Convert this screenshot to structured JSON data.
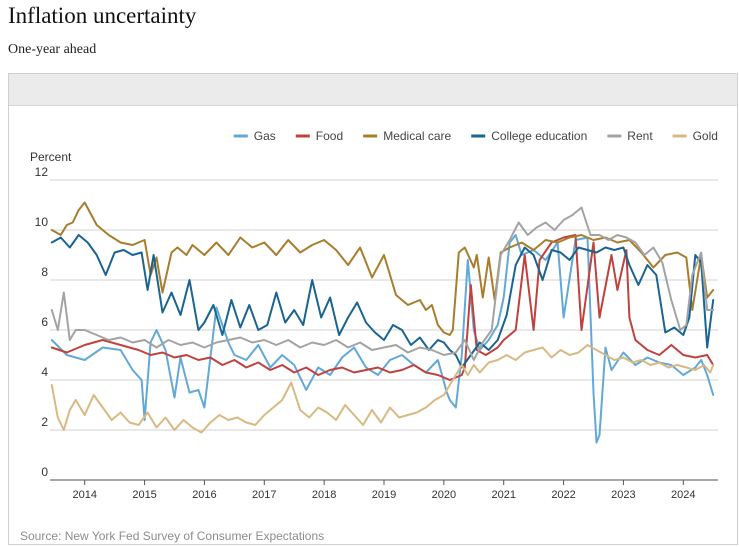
{
  "title": "Inflation uncertainty",
  "subtitle": "One-year ahead",
  "source": "Source: New York Fed Survey of Consumer Expectations",
  "chart_data": {
    "type": "line",
    "ylabel": "Percent",
    "ylim": [
      0,
      12
    ],
    "yticks": [
      0,
      2,
      4,
      6,
      8,
      10,
      12
    ],
    "xlim": [
      2013.42,
      2024.58
    ],
    "xticks": [
      2014,
      2015,
      2016,
      2017,
      2018,
      2019,
      2020,
      2021,
      2022,
      2023,
      2024
    ],
    "legend_position": "top-right",
    "series": [
      {
        "name": "Gas",
        "color": "#62a8d9",
        "x": [
          2013.45,
          2013.7,
          2014.0,
          2014.3,
          2014.6,
          2014.8,
          2014.95,
          2015.0,
          2015.1,
          2015.2,
          2015.35,
          2015.5,
          2015.6,
          2015.75,
          2015.9,
          2016.0,
          2016.2,
          2016.4,
          2016.5,
          2016.7,
          2016.9,
          2017.1,
          2017.3,
          2017.5,
          2017.7,
          2017.9,
          2018.1,
          2018.3,
          2018.5,
          2018.7,
          2018.9,
          2019.1,
          2019.3,
          2019.5,
          2019.7,
          2019.9,
          2020.05,
          2020.1,
          2020.2,
          2020.3,
          2020.4,
          2020.5,
          2020.6,
          2020.75,
          2020.9,
          2021.0,
          2021.1,
          2021.2,
          2021.3,
          2021.5,
          2021.7,
          2021.9,
          2022.0,
          2022.2,
          2022.4,
          2022.5,
          2022.55,
          2022.6,
          2022.7,
          2022.8,
          2023.0,
          2023.2,
          2023.4,
          2023.6,
          2023.8,
          2024.0,
          2024.2,
          2024.3,
          2024.4,
          2024.5
        ],
        "values": [
          5.6,
          5.0,
          4.8,
          5.3,
          5.2,
          4.4,
          4.0,
          2.4,
          5.5,
          6.0,
          5.2,
          3.3,
          4.9,
          3.5,
          3.6,
          2.9,
          6.9,
          5.5,
          5.0,
          4.8,
          5.4,
          4.5,
          5.0,
          4.6,
          3.6,
          4.5,
          4.2,
          4.9,
          5.3,
          4.5,
          4.2,
          4.8,
          5.0,
          4.6,
          4.3,
          4.8,
          3.5,
          3.2,
          2.9,
          5.0,
          8.8,
          6.0,
          5.2,
          5.6,
          6.2,
          7.3,
          9.5,
          9.8,
          9.0,
          9.2,
          8.8,
          9.5,
          6.5,
          9.6,
          9.7,
          3.5,
          1.5,
          1.8,
          5.3,
          4.4,
          5.1,
          4.6,
          4.9,
          4.7,
          4.6,
          4.2,
          4.5,
          4.8,
          4.2,
          3.4
        ]
      },
      {
        "name": "Food",
        "color": "#c0423d",
        "x": [
          2013.45,
          2013.7,
          2014.0,
          2014.3,
          2014.6,
          2014.9,
          2015.1,
          2015.3,
          2015.5,
          2015.7,
          2015.9,
          2016.1,
          2016.3,
          2016.5,
          2016.7,
          2016.9,
          2017.1,
          2017.3,
          2017.5,
          2017.7,
          2017.9,
          2018.1,
          2018.3,
          2018.5,
          2018.7,
          2018.9,
          2019.1,
          2019.3,
          2019.5,
          2019.7,
          2019.9,
          2020.0,
          2020.1,
          2020.2,
          2020.3,
          2020.35,
          2020.45,
          2020.55,
          2020.7,
          2020.9,
          2021.0,
          2021.2,
          2021.35,
          2021.5,
          2021.6,
          2021.8,
          2022.0,
          2022.2,
          2022.3,
          2022.5,
          2022.6,
          2022.8,
          2022.9,
          2023.05,
          2023.1,
          2023.2,
          2023.4,
          2023.6,
          2023.8,
          2024.0,
          2024.2,
          2024.4,
          2024.5
        ],
        "values": [
          5.3,
          5.1,
          5.4,
          5.6,
          5.4,
          5.2,
          5.0,
          5.1,
          4.9,
          5.0,
          4.8,
          4.9,
          4.6,
          4.8,
          4.5,
          4.7,
          4.4,
          4.6,
          4.3,
          4.5,
          4.2,
          4.4,
          4.5,
          4.3,
          4.4,
          4.5,
          4.3,
          4.4,
          4.6,
          4.3,
          4.2,
          4.1,
          4.0,
          4.1,
          4.2,
          4.5,
          7.8,
          5.2,
          5.0,
          5.3,
          5.6,
          6.0,
          9.0,
          6.0,
          8.8,
          9.5,
          9.7,
          9.8,
          6.0,
          9.5,
          6.5,
          9.0,
          7.6,
          9.2,
          6.5,
          5.6,
          5.2,
          5.0,
          5.4,
          5.0,
          4.9,
          5.0,
          4.6
        ]
      },
      {
        "name": "Medical care",
        "color": "#a87d2c",
        "x": [
          2013.45,
          2013.6,
          2013.7,
          2013.8,
          2013.9,
          2014.0,
          2014.2,
          2014.4,
          2014.6,
          2014.8,
          2015.0,
          2015.1,
          2015.2,
          2015.3,
          2015.45,
          2015.55,
          2015.7,
          2015.8,
          2016.0,
          2016.2,
          2016.4,
          2016.6,
          2016.8,
          2017.0,
          2017.2,
          2017.4,
          2017.6,
          2017.8,
          2018.0,
          2018.2,
          2018.4,
          2018.6,
          2018.8,
          2019.0,
          2019.2,
          2019.4,
          2019.6,
          2019.7,
          2019.8,
          2019.9,
          2020.0,
          2020.1,
          2020.15,
          2020.25,
          2020.35,
          2020.5,
          2020.55,
          2020.65,
          2020.75,
          2020.85,
          2020.95,
          2021.1,
          2021.3,
          2021.5,
          2021.7,
          2021.9,
          2022.1,
          2022.3,
          2022.5,
          2022.7,
          2022.9,
          2023.1,
          2023.3,
          2023.5,
          2023.7,
          2023.9,
          2024.05,
          2024.15,
          2024.3,
          2024.4,
          2024.5
        ],
        "values": [
          10.0,
          9.8,
          10.2,
          10.3,
          10.8,
          11.1,
          10.2,
          9.8,
          9.5,
          9.4,
          9.6,
          8.2,
          8.9,
          7.5,
          9.1,
          9.3,
          9.0,
          9.4,
          9.0,
          9.5,
          9.0,
          9.7,
          9.3,
          9.5,
          9.0,
          9.6,
          9.1,
          9.4,
          9.6,
          9.2,
          8.6,
          9.3,
          8.1,
          9.0,
          7.4,
          7.0,
          7.2,
          6.8,
          7.0,
          6.2,
          5.9,
          5.8,
          6.0,
          9.1,
          9.3,
          8.5,
          9.0,
          7.3,
          8.9,
          7.2,
          9.1,
          9.3,
          9.5,
          9.2,
          9.6,
          9.5,
          9.7,
          9.8,
          9.6,
          9.7,
          9.5,
          9.6,
          9.1,
          8.5,
          9.0,
          9.1,
          8.9,
          6.8,
          9.0,
          7.3,
          7.6
        ]
      },
      {
        "name": "College education",
        "color": "#1a6491",
        "x": [
          2013.45,
          2013.6,
          2013.75,
          2013.9,
          2014.05,
          2014.2,
          2014.35,
          2014.5,
          2014.65,
          2014.8,
          2014.95,
          2015.05,
          2015.15,
          2015.3,
          2015.45,
          2015.6,
          2015.75,
          2015.9,
          2016.0,
          2016.15,
          2016.3,
          2016.45,
          2016.6,
          2016.75,
          2016.9,
          2017.05,
          2017.2,
          2017.35,
          2017.5,
          2017.65,
          2017.8,
          2017.95,
          2018.1,
          2018.25,
          2018.4,
          2018.55,
          2018.7,
          2018.85,
          2019.0,
          2019.15,
          2019.3,
          2019.45,
          2019.6,
          2019.75,
          2019.9,
          2020.0,
          2020.1,
          2020.2,
          2020.3,
          2020.45,
          2020.6,
          2020.75,
          2020.9,
          2021.05,
          2021.2,
          2021.35,
          2021.5,
          2021.65,
          2021.8,
          2021.95,
          2022.1,
          2022.25,
          2022.4,
          2022.55,
          2022.7,
          2022.85,
          2023.0,
          2023.1,
          2023.25,
          2023.4,
          2023.55,
          2023.7,
          2023.85,
          2024.0,
          2024.1,
          2024.2,
          2024.3,
          2024.4,
          2024.5
        ],
        "values": [
          9.5,
          9.7,
          9.3,
          9.8,
          9.5,
          9.0,
          8.2,
          9.1,
          9.2,
          9.0,
          9.1,
          7.6,
          9.0,
          6.7,
          7.5,
          6.6,
          8.0,
          6.0,
          6.3,
          7.0,
          5.8,
          7.2,
          6.1,
          7.0,
          6.0,
          6.2,
          7.5,
          6.3,
          6.8,
          6.2,
          8.0,
          6.5,
          7.3,
          5.8,
          6.5,
          7.1,
          6.3,
          5.9,
          5.6,
          6.2,
          6.0,
          5.4,
          5.7,
          5.2,
          5.6,
          5.5,
          5.2,
          5.0,
          4.5,
          5.0,
          5.5,
          5.2,
          5.6,
          6.6,
          8.6,
          9.3,
          9.0,
          8.0,
          9.2,
          9.1,
          8.8,
          9.3,
          9.2,
          9.1,
          9.3,
          9.2,
          9.3,
          8.6,
          7.8,
          8.6,
          8.2,
          5.9,
          6.1,
          5.8,
          6.5,
          9.0,
          8.7,
          5.3,
          7.2
        ]
      },
      {
        "name": "Rent",
        "color": "#a3a3a3",
        "x": [
          2013.45,
          2013.55,
          2013.65,
          2013.75,
          2013.85,
          2014.0,
          2014.2,
          2014.4,
          2014.6,
          2014.8,
          2015.0,
          2015.2,
          2015.4,
          2015.6,
          2015.8,
          2016.0,
          2016.2,
          2016.4,
          2016.6,
          2016.8,
          2017.0,
          2017.2,
          2017.4,
          2017.6,
          2017.8,
          2018.0,
          2018.2,
          2018.4,
          2018.6,
          2018.8,
          2019.0,
          2019.2,
          2019.4,
          2019.6,
          2019.8,
          2020.0,
          2020.2,
          2020.35,
          2020.5,
          2020.65,
          2020.8,
          2020.95,
          2021.1,
          2021.25,
          2021.4,
          2021.55,
          2021.7,
          2021.85,
          2022.0,
          2022.15,
          2022.3,
          2022.45,
          2022.6,
          2022.75,
          2022.9,
          2023.05,
          2023.2,
          2023.35,
          2023.5,
          2023.65,
          2023.8,
          2023.95,
          2024.05,
          2024.15,
          2024.3,
          2024.4,
          2024.5
        ],
        "values": [
          6.8,
          6.0,
          7.5,
          5.6,
          6.0,
          6.0,
          5.8,
          5.6,
          5.7,
          5.5,
          5.6,
          5.3,
          5.6,
          5.4,
          5.5,
          5.3,
          5.5,
          5.6,
          5.7,
          5.5,
          5.6,
          5.4,
          5.6,
          5.3,
          5.5,
          5.4,
          5.6,
          5.3,
          5.5,
          5.2,
          5.3,
          5.4,
          5.1,
          5.3,
          5.2,
          5.0,
          5.1,
          5.6,
          4.8,
          5.5,
          6.0,
          9.0,
          9.6,
          10.3,
          9.8,
          10.1,
          10.3,
          10.0,
          10.4,
          10.6,
          10.9,
          9.8,
          9.8,
          9.6,
          9.8,
          9.7,
          9.5,
          9.0,
          9.3,
          8.7,
          7.2,
          6.0,
          6.2,
          8.2,
          9.1,
          6.8,
          6.8
        ]
      },
      {
        "name": "Gold",
        "color": "#d9b982",
        "x": [
          2013.45,
          2013.55,
          2013.65,
          2013.75,
          2013.85,
          2014.0,
          2014.15,
          2014.3,
          2014.45,
          2014.6,
          2014.75,
          2014.9,
          2015.05,
          2015.2,
          2015.35,
          2015.5,
          2015.65,
          2015.8,
          2015.95,
          2016.1,
          2016.25,
          2016.4,
          2016.55,
          2016.7,
          2016.85,
          2017.0,
          2017.15,
          2017.3,
          2017.45,
          2017.6,
          2017.75,
          2017.9,
          2018.05,
          2018.2,
          2018.35,
          2018.5,
          2018.65,
          2018.8,
          2018.95,
          2019.1,
          2019.25,
          2019.4,
          2019.55,
          2019.7,
          2019.85,
          2020.0,
          2020.1,
          2020.2,
          2020.3,
          2020.4,
          2020.5,
          2020.6,
          2020.75,
          2020.9,
          2021.05,
          2021.2,
          2021.35,
          2021.5,
          2021.65,
          2021.8,
          2021.95,
          2022.1,
          2022.25,
          2022.4,
          2022.55,
          2022.7,
          2022.85,
          2023.0,
          2023.15,
          2023.3,
          2023.45,
          2023.6,
          2023.75,
          2023.9,
          2024.05,
          2024.2,
          2024.35,
          2024.45,
          2024.5
        ],
        "values": [
          3.8,
          2.5,
          2.0,
          2.8,
          3.2,
          2.6,
          3.4,
          2.9,
          2.4,
          2.7,
          2.3,
          2.2,
          2.7,
          2.1,
          2.5,
          2.0,
          2.4,
          2.1,
          1.9,
          2.3,
          2.6,
          2.4,
          2.5,
          2.3,
          2.2,
          2.6,
          2.9,
          3.2,
          3.9,
          2.8,
          2.5,
          2.9,
          2.7,
          2.4,
          3.0,
          2.6,
          2.2,
          2.8,
          2.3,
          2.9,
          2.5,
          2.6,
          2.7,
          2.9,
          3.2,
          3.4,
          3.8,
          4.2,
          4.6,
          4.2,
          4.6,
          4.3,
          4.7,
          4.8,
          5.0,
          4.8,
          5.1,
          5.2,
          5.3,
          4.9,
          5.2,
          5.0,
          5.1,
          5.4,
          5.2,
          5.0,
          4.8,
          4.9,
          4.7,
          4.8,
          4.6,
          4.7,
          4.5,
          4.6,
          4.5,
          4.4,
          4.6,
          4.3,
          4.6
        ]
      }
    ]
  }
}
